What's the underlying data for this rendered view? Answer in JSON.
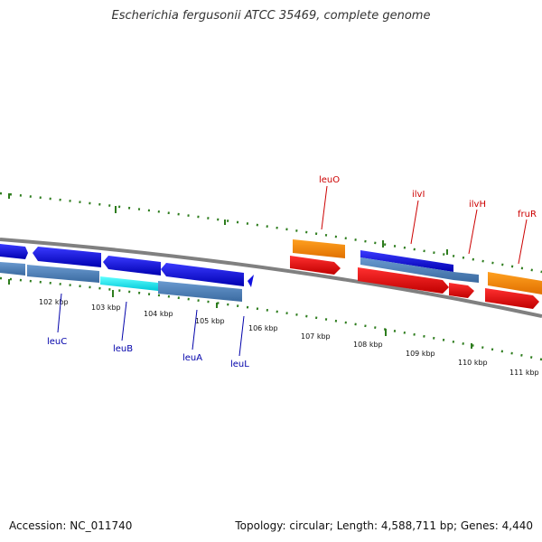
{
  "title": "Escherichia fergusonii ATCC 35469, complete genome",
  "footer": {
    "accession": "Accession: NC_011740",
    "summary": "Topology: circular; Length: 4,588,711 bp; Genes: 4,440"
  },
  "scale_labels": [
    "102 kbp",
    "103 kbp",
    "104 kbp",
    "105 kbp",
    "106 kbp",
    "107 kbp",
    "108 kbp",
    "109 kbp",
    "110 kbp",
    "111 kbp"
  ],
  "gene_labels": {
    "reverse": [
      "leuC",
      "leuB",
      "leuA",
      "leuL"
    ],
    "forward": [
      "leuO",
      "ilvI",
      "ilvH",
      "fruR"
    ]
  },
  "colors": {
    "forward_label": "#cc0000",
    "reverse_label": "#0000aa",
    "tick": "#2e7d1e",
    "backbone": "#808080",
    "cds_blue": "#1010e0",
    "cds_red": "#ee1010",
    "gene_orange": "#ff8c00",
    "gene_steel": "#4f82b8",
    "gene_cyan": "#00e5ee"
  }
}
